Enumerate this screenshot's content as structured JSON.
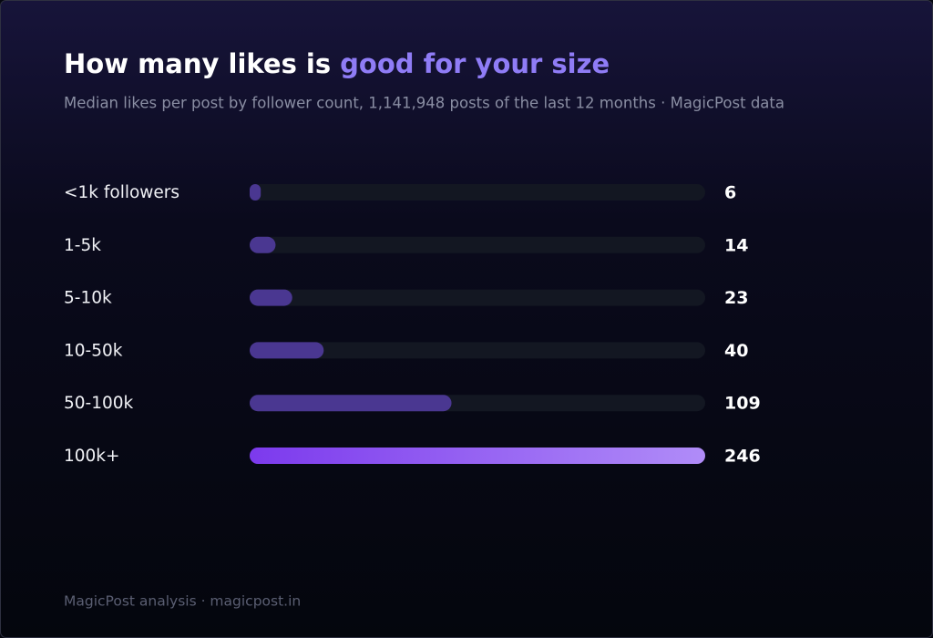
{
  "chart_data": {
    "type": "bar",
    "title": "How many likes is",
    "title_highlight": "good for your size",
    "subtitle": "Median likes per post by follower count, 1,141,948 posts of the last 12 months · MagicPost data",
    "categories": [
      "<1k followers",
      "1-5k",
      "5-10k",
      "10-50k",
      "50-100k",
      "100k+"
    ],
    "values": [
      6,
      14,
      23,
      40,
      109,
      246
    ],
    "colors": [
      "#4a3791",
      "#4a3791",
      "#4a3791",
      "#4a3791",
      "#4a3791",
      "#7c3aed"
    ],
    "xlim": [
      0,
      246
    ],
    "footer": "MagicPost analysis · magicpost.in"
  }
}
